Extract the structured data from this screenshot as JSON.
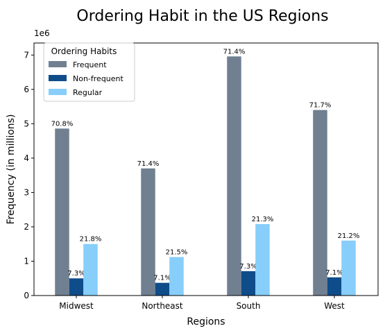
{
  "chart_data": {
    "type": "bar",
    "title": "Ordering Habit in the US Regions",
    "xlabel": "Regions",
    "ylabel": "Frequency (in millions)",
    "y_multiplier_label": "1e6",
    "ylim": [
      0,
      7350000
    ],
    "yticks": [
      0,
      1000000,
      2000000,
      3000000,
      4000000,
      5000000,
      6000000,
      7000000
    ],
    "ytick_labels": [
      "0",
      "1",
      "2",
      "3",
      "4",
      "5",
      "6",
      "7"
    ],
    "categories": [
      "Midwest",
      "Northeast",
      "South",
      "West"
    ],
    "legend": {
      "title": "Ordering Habits",
      "placement": "top-left"
    },
    "series": [
      {
        "name": "Frequent",
        "color": "#708090",
        "values": [
          4860000,
          3700000,
          6960000,
          5400000
        ],
        "labels": [
          "70.8%",
          "71.4%",
          "71.4%",
          "71.7%"
        ]
      },
      {
        "name": "Non-frequent",
        "color": "#0f4c8a",
        "values": [
          500000,
          370000,
          710000,
          530000
        ],
        "labels": [
          "7.3%",
          "7.1%",
          "7.3%",
          "7.1%"
        ]
      },
      {
        "name": "Regular",
        "color": "#87cefa",
        "values": [
          1500000,
          1120000,
          2080000,
          1600000
        ],
        "labels": [
          "21.8%",
          "21.5%",
          "21.3%",
          "21.2%"
        ]
      }
    ]
  }
}
